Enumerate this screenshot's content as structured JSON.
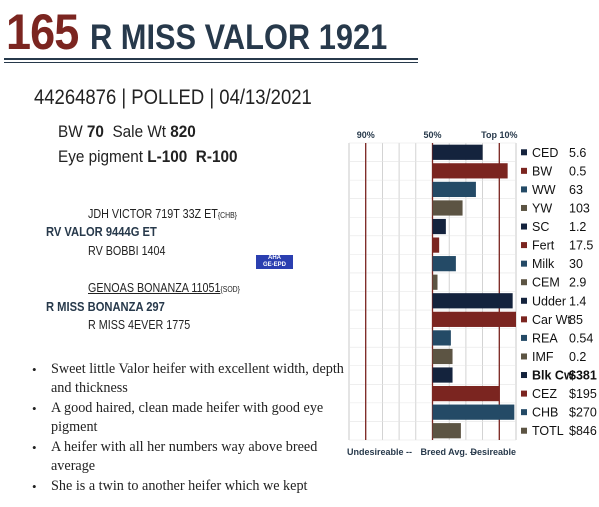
{
  "header": {
    "lot_number": "165",
    "animal_name": "R MISS VALOR 1921",
    "id_line": "44264876 | POLLED | 04/13/2021"
  },
  "stats": {
    "bw_label": "BW",
    "bw_value": "70",
    "sale_wt_label": "Sale Wt",
    "sale_wt_value": "820",
    "eye_label": "Eye pigment",
    "eye_left": "L-100",
    "eye_right": "R-100"
  },
  "pedigree": {
    "sire_sire": "JDH VICTOR 719T 33Z ET",
    "sire_sire_tag": "{CHB}",
    "sire": "RV VALOR 9444G ET",
    "sire_dam": "RV BOBBI 1404",
    "dam_sire": "GENOAS BONANZA 11051",
    "dam_sire_tag": "{SOD}",
    "dam": "R MISS BONANZA 297",
    "dam_dam": "R MISS 4EVER 1775",
    "logo_line1": "AHA",
    "logo_line2": "GE-EPD"
  },
  "comments": [
    "Sweet little Valor heifer with excellent width, depth and thickness",
    "A good haired, clean made heifer with good eye pigment",
    "A heifer with all her numbers way above breed average",
    "She is a twin to another heifer which we kept"
  ],
  "chart_data": {
    "type": "bar",
    "orientation": "horizontal",
    "x_unit": "percentile",
    "header_labels": [
      "90%",
      "50%",
      "Top 10%"
    ],
    "reference_lines_percentile": [
      90,
      50,
      10
    ],
    "footer_left": "Undesireable",
    "footer_mid": "Breed Avg.",
    "footer_right": "Desireable",
    "categories": [
      "CED",
      "BW",
      "WW",
      "YW",
      "SC",
      "Fert",
      "Milk",
      "CEM",
      "Udder",
      "Car Wt",
      "REA",
      "IMF",
      "Blk Cw",
      "CEZ",
      "CHB",
      "TOTL"
    ],
    "display_values": [
      "5.6",
      "0.5",
      "63",
      "103",
      "1.2",
      "17.5",
      "30",
      "2.9",
      "1.4",
      "85",
      "0.54",
      "0.2",
      "$381",
      "$195",
      "$270",
      "$846"
    ],
    "bold_categories": [
      "Blk Cw"
    ],
    "bar_start_percentile": 50,
    "bar_end_percentile": [
      20,
      5,
      24,
      32,
      42,
      46,
      36,
      47,
      2,
      0,
      39,
      38,
      38,
      10,
      1,
      33
    ],
    "bar_colors": [
      "#14233d",
      "#7b2520",
      "#244a66",
      "#5c5443",
      "#14233d",
      "#7b2520",
      "#244a66",
      "#5c5443",
      "#14233d",
      "#7b2520",
      "#244a66",
      "#5c5443",
      "#14233d",
      "#7b2520",
      "#244a66",
      "#5c5443"
    ],
    "ref_line_color": "#7b2520",
    "grid": true
  }
}
